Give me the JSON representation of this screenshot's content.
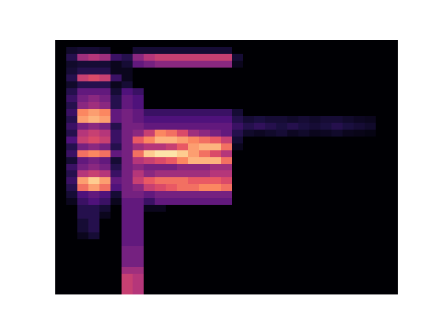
{
  "chart_data": {
    "type": "heatmap",
    "tick_labels": false,
    "zlim": [
      0,
      1
    ],
    "z": [
      [
        0,
        0,
        0,
        0,
        0,
        0,
        0,
        0,
        0,
        0,
        0,
        0,
        0,
        0,
        0,
        0,
        0,
        0,
        0,
        0,
        0,
        0,
        0,
        0,
        0,
        0,
        0,
        0,
        0,
        0,
        0
      ],
      [
        0,
        0.08,
        0.1,
        0.1,
        0.08,
        0,
        0,
        0.1,
        0.1,
        0.1,
        0.1,
        0.1,
        0.1,
        0.1,
        0.1,
        0.1,
        0,
        0,
        0,
        0,
        0,
        0,
        0,
        0,
        0,
        0,
        0,
        0,
        0,
        0,
        0
      ],
      [
        0,
        0.15,
        0.45,
        0.5,
        0.45,
        0.2,
        0.15,
        0.4,
        0.5,
        0.55,
        0.55,
        0.55,
        0.55,
        0.55,
        0.55,
        0.55,
        0.1,
        0,
        0,
        0,
        0,
        0,
        0,
        0,
        0,
        0,
        0,
        0,
        0,
        0,
        0
      ],
      [
        0,
        0.08,
        0.1,
        0.1,
        0.1,
        0.05,
        0.1,
        0.3,
        0.35,
        0.4,
        0.4,
        0.4,
        0.4,
        0.4,
        0.4,
        0.4,
        0.05,
        0,
        0,
        0,
        0,
        0,
        0,
        0,
        0,
        0,
        0,
        0,
        0,
        0,
        0
      ],
      [
        0,
        0.1,
        0.15,
        0.15,
        0.15,
        0.05,
        0.05,
        0,
        0,
        0,
        0,
        0,
        0,
        0,
        0,
        0,
        0,
        0,
        0,
        0,
        0,
        0,
        0,
        0,
        0,
        0,
        0,
        0,
        0,
        0,
        0
      ],
      [
        0,
        0.15,
        0.55,
        0.6,
        0.55,
        0.2,
        0.05,
        0,
        0,
        0,
        0,
        0,
        0,
        0,
        0,
        0,
        0,
        0,
        0,
        0,
        0,
        0,
        0,
        0,
        0,
        0,
        0,
        0,
        0,
        0,
        0
      ],
      [
        0,
        0.08,
        0.15,
        0.15,
        0.15,
        0.05,
        0.1,
        0,
        0,
        0,
        0,
        0,
        0,
        0,
        0,
        0,
        0,
        0,
        0,
        0,
        0,
        0,
        0,
        0,
        0,
        0,
        0,
        0,
        0,
        0,
        0
      ],
      [
        0,
        0.15,
        0.3,
        0.3,
        0.3,
        0.1,
        0.25,
        0.2,
        0,
        0,
        0,
        0,
        0,
        0,
        0,
        0,
        0,
        0,
        0,
        0,
        0,
        0,
        0,
        0,
        0,
        0,
        0,
        0,
        0,
        0,
        0
      ],
      [
        0,
        0.2,
        0.35,
        0.4,
        0.35,
        0.15,
        0.3,
        0.25,
        0,
        0,
        0,
        0,
        0,
        0,
        0,
        0,
        0,
        0,
        0,
        0,
        0,
        0,
        0,
        0,
        0,
        0,
        0,
        0,
        0,
        0,
        0
      ],
      [
        0,
        0.15,
        0.4,
        0.45,
        0.4,
        0.15,
        0.3,
        0.25,
        0,
        0,
        0,
        0,
        0,
        0,
        0,
        0,
        0,
        0,
        0,
        0,
        0,
        0,
        0,
        0,
        0,
        0,
        0,
        0,
        0,
        0,
        0
      ],
      [
        0,
        0.2,
        0.75,
        0.8,
        0.75,
        0.3,
        0.35,
        0.3,
        0.2,
        0.2,
        0.2,
        0.2,
        0.2,
        0.2,
        0.2,
        0.2,
        0.1,
        0,
        0,
        0,
        0,
        0,
        0,
        0,
        0,
        0,
        0,
        0,
        0,
        0,
        0
      ],
      [
        0,
        0.15,
        0.8,
        0.85,
        0.8,
        0.3,
        0.35,
        0.3,
        0.25,
        0.25,
        0.25,
        0.25,
        0.25,
        0.25,
        0.25,
        0.25,
        0.15,
        0.1,
        0.12,
        0.1,
        0.1,
        0.08,
        0.1,
        0.08,
        0.1,
        0.1,
        0.08,
        0.06,
        0.05,
        0,
        0
      ],
      [
        0,
        0.2,
        0.35,
        0.4,
        0.35,
        0.15,
        0.35,
        0.35,
        0.3,
        0.3,
        0.3,
        0.3,
        0.3,
        0.3,
        0.3,
        0.3,
        0.2,
        0.15,
        0.18,
        0.15,
        0.12,
        0.15,
        0.12,
        0.1,
        0.12,
        0.15,
        0.12,
        0.1,
        0.08,
        0,
        0
      ],
      [
        0,
        0.15,
        0.5,
        0.55,
        0.5,
        0.2,
        0.35,
        0.4,
        0.55,
        0.75,
        0.7,
        0.6,
        0.45,
        0.4,
        0.35,
        0.3,
        0.15,
        0.08,
        0.06,
        0.08,
        0.1,
        0.06,
        0.08,
        0.05,
        0.06,
        0.08,
        0.05,
        0.04,
        0.03,
        0,
        0
      ],
      [
        0,
        0.25,
        0.55,
        0.6,
        0.55,
        0.2,
        0.35,
        0.65,
        0.75,
        0.85,
        0.85,
        0.8,
        0.75,
        0.7,
        0.65,
        0.55,
        0.1,
        0,
        0,
        0,
        0,
        0,
        0,
        0,
        0,
        0,
        0,
        0,
        0,
        0,
        0
      ],
      [
        0,
        0.15,
        0.35,
        0.4,
        0.35,
        0.15,
        0.35,
        0.45,
        0.5,
        0.5,
        0.55,
        0.65,
        0.8,
        0.85,
        0.85,
        0.7,
        0.05,
        0,
        0,
        0,
        0,
        0,
        0,
        0,
        0,
        0,
        0,
        0,
        0,
        0,
        0
      ],
      [
        0,
        0.2,
        0.7,
        0.75,
        0.7,
        0.3,
        0.35,
        0.7,
        0.9,
        0.95,
        0.95,
        0.9,
        0.8,
        0.7,
        0.6,
        0.5,
        0,
        0,
        0,
        0,
        0,
        0,
        0,
        0,
        0,
        0,
        0,
        0,
        0,
        0,
        0
      ],
      [
        0,
        0.1,
        0.3,
        0.35,
        0.3,
        0.1,
        0.35,
        0.5,
        0.55,
        0.6,
        0.65,
        0.75,
        0.85,
        0.85,
        0.85,
        0.7,
        0,
        0,
        0,
        0,
        0,
        0,
        0,
        0,
        0,
        0,
        0,
        0,
        0,
        0,
        0
      ],
      [
        0,
        0.2,
        0.35,
        0.4,
        0.35,
        0.15,
        0.35,
        0.4,
        0.35,
        0.35,
        0.35,
        0.4,
        0.4,
        0.4,
        0.45,
        0.45,
        0,
        0,
        0,
        0,
        0,
        0,
        0,
        0,
        0,
        0,
        0,
        0,
        0,
        0,
        0
      ],
      [
        0,
        0.15,
        0.5,
        0.55,
        0.5,
        0.2,
        0.35,
        0.5,
        0.4,
        0.45,
        0.45,
        0.45,
        0.45,
        0.45,
        0.5,
        0.5,
        0,
        0,
        0,
        0,
        0,
        0,
        0,
        0,
        0,
        0,
        0,
        0,
        0,
        0,
        0
      ],
      [
        0,
        0.2,
        0.8,
        0.9,
        0.8,
        0.3,
        0.35,
        0.55,
        0.65,
        0.7,
        0.7,
        0.7,
        0.65,
        0.65,
        0.65,
        0.6,
        0,
        0,
        0,
        0,
        0,
        0,
        0,
        0,
        0,
        0,
        0,
        0,
        0,
        0,
        0
      ],
      [
        0,
        0.15,
        0.7,
        0.8,
        0.7,
        0.25,
        0.35,
        0.4,
        0.55,
        0.6,
        0.65,
        0.7,
        0.7,
        0.75,
        0.75,
        0.7,
        0,
        0,
        0,
        0,
        0,
        0,
        0,
        0,
        0,
        0,
        0,
        0,
        0,
        0,
        0
      ],
      [
        0,
        0.1,
        0.25,
        0.3,
        0.25,
        0.1,
        0.35,
        0.35,
        0.3,
        0.35,
        0.35,
        0.35,
        0.35,
        0.35,
        0.35,
        0.35,
        0,
        0,
        0,
        0,
        0,
        0,
        0,
        0,
        0,
        0,
        0,
        0,
        0,
        0,
        0
      ],
      [
        0,
        0.05,
        0.2,
        0.25,
        0.2,
        0.05,
        0.3,
        0.3,
        0.2,
        0.3,
        0.3,
        0.3,
        0.3,
        0.3,
        0.3,
        0.3,
        0,
        0,
        0,
        0,
        0,
        0,
        0,
        0,
        0,
        0,
        0,
        0,
        0,
        0,
        0
      ],
      [
        0,
        0,
        0.15,
        0.15,
        0.1,
        0,
        0.3,
        0.3,
        0.05,
        0.05,
        0,
        0,
        0,
        0,
        0,
        0,
        0,
        0,
        0,
        0,
        0,
        0,
        0,
        0,
        0,
        0,
        0,
        0,
        0,
        0,
        0
      ],
      [
        0,
        0,
        0.15,
        0.15,
        0.05,
        0,
        0.3,
        0.3,
        0,
        0,
        0,
        0,
        0,
        0,
        0,
        0,
        0,
        0,
        0,
        0,
        0,
        0,
        0,
        0,
        0,
        0,
        0,
        0,
        0,
        0,
        0
      ],
      [
        0,
        0,
        0.1,
        0.15,
        0,
        0,
        0.3,
        0.3,
        0,
        0,
        0,
        0,
        0,
        0,
        0,
        0,
        0,
        0,
        0,
        0,
        0,
        0,
        0,
        0,
        0,
        0,
        0,
        0,
        0,
        0,
        0
      ],
      [
        0,
        0,
        0.1,
        0.15,
        0,
        0,
        0.3,
        0.3,
        0,
        0,
        0,
        0,
        0,
        0,
        0,
        0,
        0,
        0,
        0,
        0,
        0,
        0,
        0,
        0,
        0,
        0,
        0,
        0,
        0,
        0,
        0
      ],
      [
        0,
        0,
        0.05,
        0.1,
        0,
        0,
        0.3,
        0.3,
        0,
        0,
        0,
        0,
        0,
        0,
        0,
        0,
        0,
        0,
        0,
        0,
        0,
        0,
        0,
        0,
        0,
        0,
        0,
        0,
        0,
        0,
        0
      ],
      [
        0,
        0,
        0,
        0,
        0,
        0,
        0.3,
        0.3,
        0,
        0,
        0,
        0,
        0,
        0,
        0,
        0,
        0,
        0,
        0,
        0,
        0,
        0,
        0,
        0,
        0,
        0,
        0,
        0,
        0,
        0,
        0
      ],
      [
        0,
        0,
        0,
        0,
        0,
        0,
        0.35,
        0.35,
        0,
        0,
        0,
        0,
        0,
        0,
        0,
        0,
        0,
        0,
        0,
        0,
        0,
        0,
        0,
        0,
        0,
        0,
        0,
        0,
        0,
        0,
        0
      ],
      [
        0,
        0,
        0,
        0,
        0,
        0,
        0.35,
        0.35,
        0,
        0,
        0,
        0,
        0,
        0,
        0,
        0,
        0,
        0,
        0,
        0,
        0,
        0,
        0,
        0,
        0,
        0,
        0,
        0,
        0,
        0,
        0
      ],
      [
        0,
        0,
        0,
        0,
        0,
        0,
        0.35,
        0.35,
        0,
        0,
        0,
        0,
        0,
        0,
        0,
        0,
        0,
        0,
        0,
        0,
        0,
        0,
        0,
        0,
        0,
        0,
        0,
        0,
        0,
        0,
        0
      ],
      [
        0,
        0,
        0,
        0,
        0,
        0,
        0.45,
        0.45,
        0,
        0,
        0,
        0,
        0,
        0,
        0,
        0,
        0,
        0,
        0,
        0,
        0,
        0,
        0,
        0,
        0,
        0,
        0,
        0,
        0,
        0,
        0
      ],
      [
        0,
        0,
        0,
        0,
        0,
        0,
        0.55,
        0.5,
        0,
        0,
        0,
        0,
        0,
        0,
        0,
        0,
        0,
        0,
        0,
        0,
        0,
        0,
        0,
        0,
        0,
        0,
        0,
        0,
        0,
        0,
        0
      ],
      [
        0,
        0,
        0,
        0,
        0,
        0,
        0.55,
        0.5,
        0,
        0,
        0,
        0,
        0,
        0,
        0,
        0,
        0,
        0,
        0,
        0,
        0,
        0,
        0,
        0,
        0,
        0,
        0,
        0,
        0,
        0,
        0
      ],
      [
        0,
        0,
        0,
        0,
        0,
        0,
        0.55,
        0.5,
        0,
        0,
        0,
        0,
        0,
        0,
        0,
        0,
        0,
        0,
        0,
        0,
        0,
        0,
        0,
        0,
        0,
        0,
        0,
        0,
        0,
        0,
        0
      ]
    ]
  }
}
